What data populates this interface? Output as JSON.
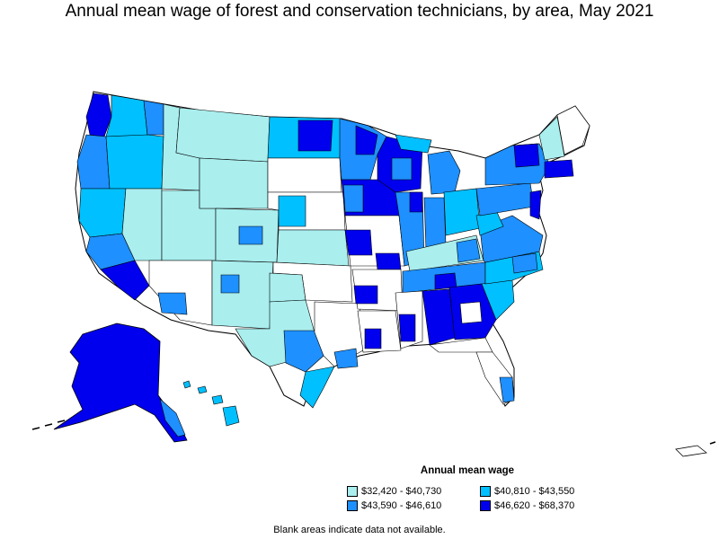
{
  "title": "Annual mean wage of forest and conservation technicians, by area, May 2021",
  "legend": {
    "title": "Annual mean wage",
    "items": [
      {
        "label": "$32,420 - $40,730",
        "color": "#aaeeee"
      },
      {
        "label": "$40,810 - $43,550",
        "color": "#00c0ff"
      },
      {
        "label": "$43,590 - $46,610",
        "color": "#1e90ff"
      },
      {
        "label": "$46,620 - $68,370",
        "color": "#0000ee"
      }
    ]
  },
  "footnote": "Blank areas indicate data not available.",
  "colors": {
    "border": "#000000",
    "blank": "#ffffff"
  }
}
